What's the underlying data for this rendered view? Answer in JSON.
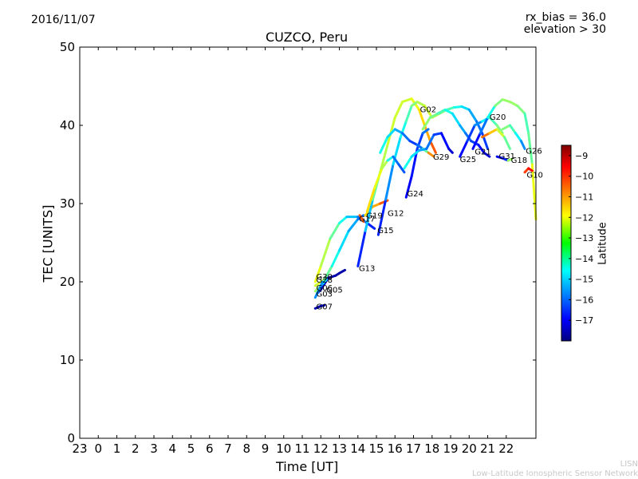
{
  "header": {
    "date": "2016/11/07",
    "rx_bias": "rx_bias = 36.0",
    "elevation": "elevation > 30"
  },
  "footer": {
    "org_short": "LISN",
    "org_long": "Low-Latitude Ionospheric Sensor Network"
  },
  "chart_data": {
    "type": "line",
    "title": "CUZCO, Peru",
    "xlabel": "Time [UT]",
    "ylabel": "TEC [UNITS]",
    "x_tick_labels": [
      "23",
      "0",
      "1",
      "2",
      "3",
      "4",
      "5",
      "6",
      "7",
      "8",
      "9",
      "10",
      "11",
      "12",
      "13",
      "14",
      "15",
      "16",
      "17",
      "18",
      "19",
      "20",
      "21",
      "22"
    ],
    "xlim": [
      -1,
      23.6
    ],
    "ylim": [
      0,
      50
    ],
    "y_ticks": [
      0,
      10,
      20,
      30,
      40,
      50
    ],
    "grid": false,
    "colorbar": {
      "label": "Latitude",
      "range": [
        -18,
        -8.5
      ],
      "ticks": [
        -9,
        -10,
        -11,
        -12,
        -13,
        -14,
        -15,
        -16,
        -17
      ]
    },
    "series": [
      {
        "name": "G07",
        "points": [
          [
            11.7,
            16.6
          ],
          [
            12.0,
            16.9
          ],
          [
            12.2,
            17.0
          ]
        ],
        "lat": [
          -17.5,
          -17.5,
          -17.5
        ]
      },
      {
        "name": "G05",
        "points": [
          [
            11.8,
            18.5
          ],
          [
            12.0,
            19.0
          ],
          [
            12.4,
            20.5
          ],
          [
            12.8,
            20.8
          ],
          [
            13.0,
            21.1
          ],
          [
            13.3,
            21.5
          ]
        ],
        "lat": [
          -16,
          -17,
          -17.5,
          -17.6,
          -17.6,
          -17.6
        ]
      },
      {
        "name": "G30",
        "points": [
          [
            11.7,
            20.0
          ],
          [
            12.0,
            22.0
          ],
          [
            12.5,
            25.5
          ],
          [
            13.0,
            27.5
          ],
          [
            13.4,
            28.3
          ],
          [
            14.0,
            28.3
          ],
          [
            14.5,
            27.5
          ],
          [
            14.9,
            26.8
          ]
        ],
        "lat": [
          -12,
          -12.5,
          -13,
          -14,
          -14.5,
          -15.5,
          -16,
          -17
        ]
      },
      {
        "name": "G28",
        "points": [
          [
            11.7,
            19.5
          ],
          [
            12.2,
            20.3
          ],
          [
            12.6,
            22.0
          ],
          [
            13.0,
            24.0
          ],
          [
            13.5,
            26.5
          ],
          [
            14.0,
            28.0
          ],
          [
            14.3,
            28.5
          ]
        ],
        "lat": [
          -12,
          -13,
          -14,
          -14.5,
          -15,
          -15.5,
          -16
        ]
      },
      {
        "name": "G06",
        "points": [
          [
            11.7,
            18.8
          ],
          [
            12.0,
            19.5
          ],
          [
            12.3,
            20.3
          ]
        ],
        "lat": [
          -12,
          -14,
          -15
        ]
      },
      {
        "name": "G03",
        "points": [
          [
            11.7,
            18.0
          ],
          [
            11.9,
            19.0
          ],
          [
            12.1,
            20.0
          ]
        ],
        "lat": [
          -15.5,
          -15.5,
          -15.5
        ]
      },
      {
        "name": "G17",
        "points": [
          [
            14.1,
            28.5
          ],
          [
            14.3,
            27.7
          ]
        ],
        "lat": [
          -11,
          -10
        ]
      },
      {
        "name": "G19",
        "points": [
          [
            14.4,
            28.5
          ],
          [
            14.8,
            29.6
          ],
          [
            15.2,
            30.0
          ],
          [
            15.6,
            30.4
          ]
        ],
        "lat": [
          -12,
          -11.5,
          -11,
          -10
        ]
      },
      {
        "name": "G13",
        "points": [
          [
            14.0,
            22.0
          ],
          [
            14.4,
            26.5
          ],
          [
            14.8,
            30.5
          ],
          [
            15.2,
            34.0
          ],
          [
            15.6,
            37.5
          ],
          [
            16.0,
            41.0
          ],
          [
            16.4,
            43.0
          ],
          [
            16.9,
            43.4
          ],
          [
            17.3,
            42.0
          ],
          [
            17.6,
            40.0
          ],
          [
            17.9,
            38.0
          ],
          [
            18.2,
            36.5
          ]
        ],
        "lat": [
          -17,
          -16,
          -14,
          -13,
          -12.5,
          -12.5,
          -12.5,
          -12.5,
          -12,
          -11.5,
          -11,
          -10
        ]
      },
      {
        "name": "G15",
        "points": [
          [
            15.1,
            26.0
          ],
          [
            15.5,
            30.5
          ],
          [
            15.9,
            35.0
          ],
          [
            16.3,
            38.5
          ],
          [
            16.6,
            40.5
          ],
          [
            16.9,
            42.5
          ],
          [
            17.2,
            43.0
          ],
          [
            17.6,
            42.5
          ],
          [
            18.0,
            41.0
          ],
          [
            18.4,
            41.5
          ],
          [
            18.8,
            42.0
          ],
          [
            19.2,
            42.3
          ],
          [
            19.6,
            42.4
          ],
          [
            20.0,
            42.0
          ],
          [
            20.4,
            40.5
          ],
          [
            20.7,
            39.0
          ],
          [
            21.0,
            37.0
          ]
        ],
        "lat": [
          -17,
          -16,
          -15,
          -14.5,
          -14,
          -13.5,
          -13,
          -12.5,
          -12.5,
          -13,
          -13.5,
          -14,
          -14.5,
          -15,
          -15.5,
          -16,
          -16.5
        ]
      },
      {
        "name": "G12",
        "points": [
          [
            14.5,
            29.0
          ],
          [
            14.9,
            32.0
          ],
          [
            15.3,
            34.5
          ],
          [
            15.6,
            35.5
          ],
          [
            15.9,
            36.0
          ],
          [
            16.2,
            35.0
          ],
          [
            16.5,
            34.0
          ]
        ],
        "lat": [
          -11.5,
          -12,
          -12.5,
          -13,
          -15.5,
          -16,
          -16
        ]
      },
      {
        "name": "G24",
        "points": [
          [
            16.6,
            30.8
          ],
          [
            16.9,
            33.5
          ],
          [
            17.2,
            37.0
          ],
          [
            17.5,
            39.0
          ],
          [
            17.8,
            39.5
          ]
        ],
        "lat": [
          -17,
          -16.8,
          -16.5,
          -16,
          -15.5
        ]
      },
      {
        "name": "G02",
        "points": [
          [
            15.2,
            36.5
          ],
          [
            15.6,
            38.5
          ],
          [
            16.0,
            39.5
          ],
          [
            16.4,
            39.0
          ],
          [
            16.8,
            38.0
          ],
          [
            17.2,
            37.5
          ],
          [
            17.5,
            37.0
          ],
          [
            17.8,
            36.5
          ],
          [
            18.1,
            36.0
          ]
        ],
        "lat": [
          -14,
          -14.5,
          -15,
          -15.5,
          -16,
          -16.5,
          -15,
          -12,
          -10
        ]
      },
      {
        "name": "G29",
        "points": [
          [
            16.5,
            34.5
          ],
          [
            16.9,
            36.0
          ],
          [
            17.3,
            36.8
          ],
          [
            17.7,
            37.0
          ],
          [
            18.1,
            38.8
          ],
          [
            18.5,
            39.0
          ],
          [
            18.9,
            37.0
          ],
          [
            19.1,
            36.5
          ]
        ],
        "lat": [
          -14,
          -14.5,
          -15,
          -15.5,
          -16,
          -16.5,
          -17,
          -17.5
        ]
      },
      {
        "name": "G25",
        "points": [
          [
            17.5,
            39.5
          ],
          [
            17.9,
            41.0
          ],
          [
            18.3,
            41.5
          ],
          [
            18.7,
            42.0
          ],
          [
            19.1,
            41.5
          ],
          [
            19.5,
            40.0
          ],
          [
            19.8,
            39.0
          ],
          [
            20.1,
            38.0
          ],
          [
            20.5,
            37.5
          ],
          [
            20.8,
            36.5
          ],
          [
            21.1,
            36.0
          ]
        ],
        "lat": [
          -13,
          -13.2,
          -13.5,
          -14,
          -14.5,
          -15,
          -15.5,
          -16,
          -16.5,
          -17,
          -17.5
        ]
      },
      {
        "name": "G20",
        "points": [
          [
            19.5,
            36.0
          ],
          [
            19.9,
            38.0
          ],
          [
            20.3,
            40.0
          ],
          [
            20.7,
            40.5
          ],
          [
            21.1,
            41.0
          ],
          [
            21.5,
            40.0
          ],
          [
            21.8,
            39.0
          ]
        ],
        "lat": [
          -17,
          -16.5,
          -16,
          -15,
          -14,
          -13.5,
          -13
        ]
      },
      {
        "name": "G21",
        "points": [
          [
            20.2,
            37.0
          ],
          [
            20.6,
            39.0
          ],
          [
            21.0,
            41.0
          ],
          [
            21.4,
            42.5
          ],
          [
            21.8,
            43.3
          ],
          [
            22.2,
            43.0
          ],
          [
            22.6,
            42.5
          ],
          [
            23.0,
            41.5
          ],
          [
            23.2,
            39.0
          ],
          [
            23.4,
            35.0
          ],
          [
            23.6,
            28.0
          ]
        ],
        "lat": [
          -17,
          -16.5,
          -15,
          -13.5,
          -13,
          -13,
          -13,
          -13.5,
          -14,
          -13,
          -11.5
        ]
      },
      {
        "name": "G31",
        "points": [
          [
            20.7,
            38.5
          ],
          [
            21.1,
            39.0
          ],
          [
            21.5,
            39.5
          ],
          [
            21.9,
            38.5
          ],
          [
            22.2,
            37.0
          ]
        ],
        "lat": [
          -10.5,
          -11,
          -12,
          -13,
          -14
        ]
      },
      {
        "name": "G18",
        "points": [
          [
            21.5,
            36.0
          ],
          [
            21.8,
            35.8
          ],
          [
            22.1,
            35.5
          ],
          [
            22.3,
            35.7
          ]
        ],
        "lat": [
          -17,
          -17,
          -16,
          -10
        ]
      },
      {
        "name": "G26",
        "points": [
          [
            21.8,
            39.5
          ],
          [
            22.2,
            40.0
          ],
          [
            22.5,
            39.0
          ],
          [
            22.8,
            38.0
          ],
          [
            23.0,
            37.0
          ]
        ],
        "lat": [
          -13,
          -13.5,
          -14,
          -15,
          -16
        ]
      },
      {
        "name": "G10",
        "points": [
          [
            23.0,
            34.0
          ],
          [
            23.2,
            34.5
          ],
          [
            23.4,
            34.2
          ]
        ],
        "lat": [
          -10.5,
          -10,
          -9.5
        ]
      }
    ],
    "satellite_labels": [
      {
        "text": "G30",
        "x": 11.75,
        "y": 20.3
      },
      {
        "text": "G28",
        "x": 11.75,
        "y": 19.9
      },
      {
        "text": "G06",
        "x": 11.75,
        "y": 18.9
      },
      {
        "text": "G05",
        "x": 12.3,
        "y": 18.6
      },
      {
        "text": "G03",
        "x": 11.75,
        "y": 18.1
      },
      {
        "text": "G07",
        "x": 11.75,
        "y": 16.5
      },
      {
        "text": "G13",
        "x": 14.05,
        "y": 21.4
      },
      {
        "text": "G15",
        "x": 15.05,
        "y": 26.2
      },
      {
        "text": "G17",
        "x": 14.05,
        "y": 27.7
      },
      {
        "text": "G19",
        "x": 14.45,
        "y": 28.1
      },
      {
        "text": "G12",
        "x": 15.6,
        "y": 28.4
      },
      {
        "text": "G24",
        "x": 16.65,
        "y": 30.9
      },
      {
        "text": "G29",
        "x": 18.05,
        "y": 35.6
      },
      {
        "text": "G02",
        "x": 17.35,
        "y": 41.7
      },
      {
        "text": "G25",
        "x": 19.5,
        "y": 35.3
      },
      {
        "text": "G21",
        "x": 20.3,
        "y": 36.3
      },
      {
        "text": "G20",
        "x": 21.1,
        "y": 40.7
      },
      {
        "text": "G31",
        "x": 21.6,
        "y": 35.7
      },
      {
        "text": "G18",
        "x": 22.25,
        "y": 35.2
      },
      {
        "text": "G26",
        "x": 23.05,
        "y": 36.4
      },
      {
        "text": "G10",
        "x": 23.1,
        "y": 33.3
      }
    ]
  }
}
